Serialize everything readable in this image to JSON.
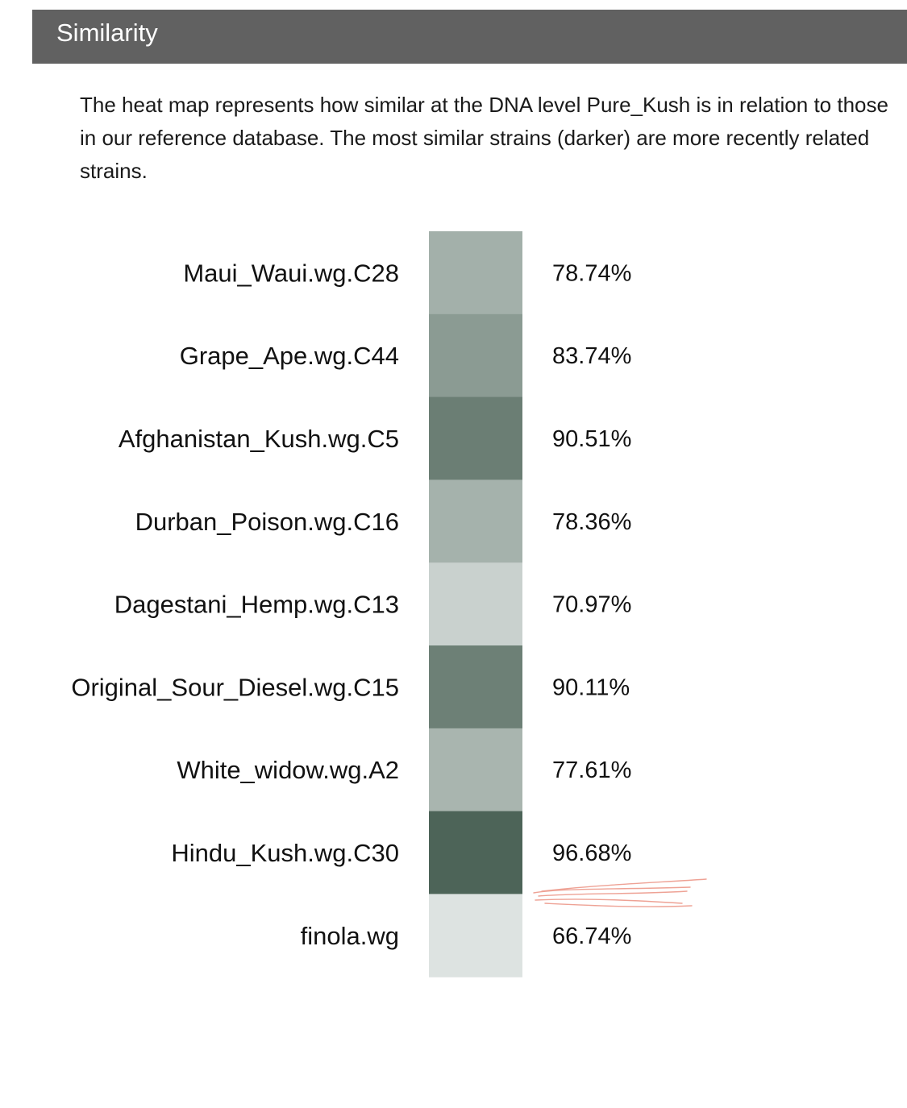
{
  "section": {
    "title": "Similarity"
  },
  "intro": {
    "text": "The heat map represents how similar at the DNA level Pure_Kush is in relation to those in our reference database. The most similar strains (darker) are more recently related strains."
  },
  "colors": {
    "header_bg": "#616161",
    "heatmap_light": "#dde3e1",
    "heatmap_dark": "#4d6458",
    "scribble": "#e0553e"
  },
  "chart_data": {
    "type": "heatmap",
    "title": "",
    "value_unit": "%",
    "rows": [
      {
        "label": "Maui_Waui.wg.C28",
        "value": 78.74,
        "display": "78.74%"
      },
      {
        "label": "Grape_Ape.wg.C44",
        "value": 83.74,
        "display": "83.74%"
      },
      {
        "label": "Afghanistan_Kush.wg.C5",
        "value": 90.51,
        "display": "90.51%"
      },
      {
        "label": "Durban_Poison.wg.C16",
        "value": 78.36,
        "display": "78.36%"
      },
      {
        "label": "Dagestani_Hemp.wg.C13",
        "value": 70.97,
        "display": "70.97%"
      },
      {
        "label": "Original_Sour_Diesel.wg.C15",
        "value": 90.11,
        "display": "90.11%"
      },
      {
        "label": "White_widow.wg.A2",
        "value": 77.61,
        "display": "77.61%"
      },
      {
        "label": "Hindu_Kush.wg.C30",
        "value": 96.68,
        "display": "96.68%"
      },
      {
        "label": "finola.wg",
        "value": 66.74,
        "display": "66.74%"
      }
    ],
    "color_scale": {
      "min_value": 66.74,
      "max_value": 96.68,
      "low_color": "#dde3e1",
      "high_color": "#4d6458"
    },
    "legend": "none",
    "grid": false
  }
}
